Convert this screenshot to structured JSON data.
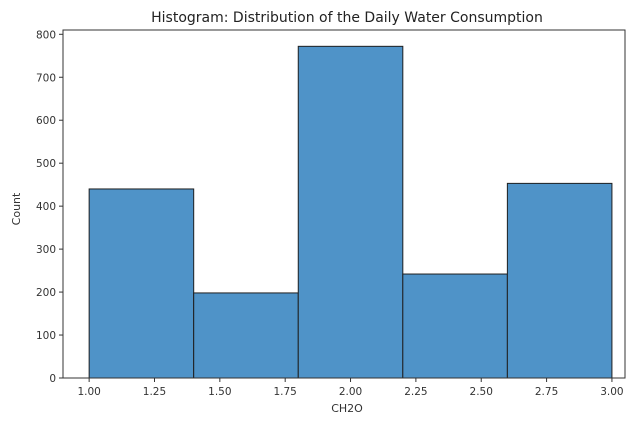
{
  "chart_data": {
    "type": "bar",
    "title": "Histogram: Distribution of the Daily Water Consumption",
    "xlabel": "CH2O",
    "ylabel": "Count",
    "bins": [
      {
        "start": 1.0,
        "end": 1.4,
        "count": 440
      },
      {
        "start": 1.4,
        "end": 1.8,
        "count": 198
      },
      {
        "start": 1.8,
        "end": 2.2,
        "count": 772
      },
      {
        "start": 2.2,
        "end": 2.6,
        "count": 242
      },
      {
        "start": 2.6,
        "end": 3.0,
        "count": 453
      }
    ],
    "xlim": [
      0.9,
      3.05
    ],
    "ylim": [
      0,
      810
    ],
    "xticks": [
      1.0,
      1.25,
      1.5,
      1.75,
      2.0,
      2.25,
      2.5,
      2.75,
      3.0
    ],
    "xtick_labels": [
      "1.00",
      "1.25",
      "1.50",
      "1.75",
      "2.00",
      "2.25",
      "2.50",
      "2.75",
      "3.00"
    ],
    "yticks": [
      0,
      100,
      200,
      300,
      400,
      500,
      600,
      700,
      800
    ],
    "ytick_labels": [
      "0",
      "100",
      "200",
      "300",
      "400",
      "500",
      "600",
      "700",
      "800"
    ],
    "bar_color": "#4f93c8",
    "grid": false,
    "legend": "none"
  }
}
